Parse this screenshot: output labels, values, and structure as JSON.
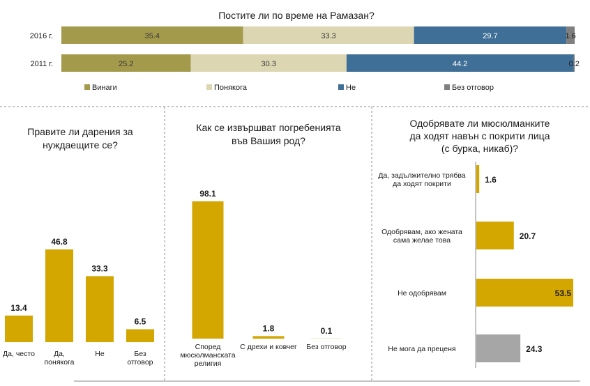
{
  "colors": {
    "always": "#A39A4C",
    "sometimes": "#DCD6B2",
    "no": "#3F6F96",
    "no_answer": "#7F7F7F",
    "gold": "#D4A600",
    "grey_bar": "#A6A6A6",
    "divider": "#8A8A8A"
  },
  "chart_data": [
    {
      "type": "bar",
      "stacked": true,
      "orientation": "horizontal",
      "title": "Постите ли по време на Рамазан?",
      "categories": [
        "2016 г.",
        "2011 г."
      ],
      "series": [
        {
          "name": "Винаги",
          "values": [
            35.4,
            25.2
          ],
          "labels": [
            "35.4",
            "25.2"
          ]
        },
        {
          "name": "Понякога",
          "values": [
            33.3,
            30.3
          ],
          "labels": [
            "33.3",
            "30.3"
          ]
        },
        {
          "name": "Не",
          "values": [
            29.7,
            44.2
          ],
          "labels": [
            "29.7",
            "44.2"
          ]
        },
        {
          "name": "Без отговор",
          "values": [
            1.6,
            0.2
          ],
          "labels": [
            "1.6",
            "0.2"
          ]
        }
      ],
      "legend_position": "bottom"
    },
    {
      "type": "bar",
      "title_lines": [
        "Правите ли дарения за",
        "нуждаещите се?"
      ],
      "categories": [
        [
          "Да, често"
        ],
        [
          "Да,",
          "понякога"
        ],
        [
          "Не"
        ],
        [
          "Без",
          "отговор"
        ]
      ],
      "values": [
        13.4,
        46.8,
        33.3,
        6.5
      ],
      "labels": [
        "13.4",
        "46.8",
        "33.3",
        "6.5"
      ]
    },
    {
      "type": "bar",
      "title_lines": [
        "Как се извършват погребенията",
        "във Вашия род?"
      ],
      "categories": [
        [
          "Според",
          "мюсюлманската",
          "религия"
        ],
        [
          "С дрехи и ковчег"
        ],
        [
          "Без отговор"
        ]
      ],
      "values": [
        98.1,
        1.8,
        0.1
      ],
      "labels": [
        "98.1",
        "1.8",
        "0.1"
      ]
    },
    {
      "type": "bar",
      "orientation": "horizontal",
      "title_lines": [
        "Одобрявате ли мюсюлманките",
        "да ходят навън с покрити лица",
        "(с бурка, никаб)?"
      ],
      "categories": [
        [
          "Да, задължително трябва",
          "да ходят покрити"
        ],
        [
          "Одобрявам, ако жената",
          "сама желае това"
        ],
        [
          "Не одобрявам"
        ],
        [
          "Не мога да преценя"
        ]
      ],
      "values": [
        1.6,
        20.7,
        53.5,
        24.3
      ],
      "labels": [
        "1.6",
        "20.7",
        "53.5",
        "24.3"
      ]
    }
  ]
}
